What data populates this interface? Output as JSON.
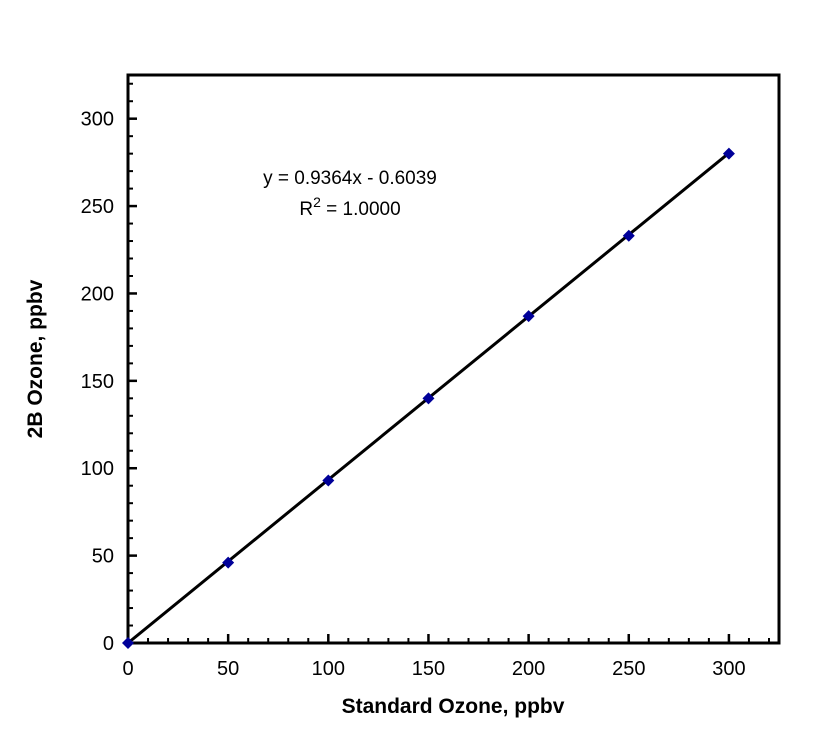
{
  "chart_data": {
    "type": "scatter",
    "title": "",
    "xlabel": "Standard Ozone, ppbv",
    "ylabel": "2B Ozone, ppbv",
    "xlim": [
      0,
      325
    ],
    "ylim": [
      0,
      325
    ],
    "xticks": [
      0,
      50,
      100,
      150,
      200,
      250,
      300
    ],
    "yticks": [
      0,
      50,
      100,
      150,
      200,
      250,
      300
    ],
    "minor_tick_interval": 10,
    "grid": false,
    "legend": null,
    "series": [
      {
        "name": "2B Ozone vs Standard Ozone",
        "marker": "diamond",
        "marker_color": "#000099",
        "x": [
          0,
          50,
          100,
          150,
          200,
          250,
          300
        ],
        "y": [
          0,
          46,
          93,
          140,
          187,
          233,
          280
        ]
      }
    ],
    "trendline": {
      "slope": 0.9364,
      "intercept": -0.6039,
      "color": "#000000",
      "x_start": 0,
      "x_end": 300
    },
    "annotation": {
      "line1": "y = 0.9364x - 0.6039",
      "r_prefix": "R",
      "r_sup": "2",
      "r_rest": " = 1.0000"
    }
  },
  "colors": {
    "frame": "#000000",
    "marker": "#000099",
    "trendline": "#000000",
    "text": "#000000",
    "background": "#ffffff"
  }
}
